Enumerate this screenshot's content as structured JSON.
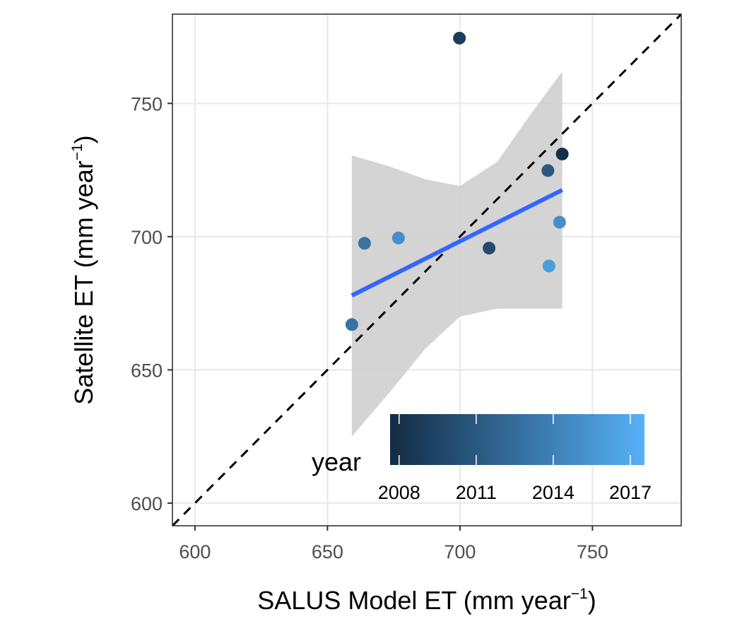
{
  "chart_data": {
    "type": "scatter",
    "xlabel": "SALUS Model ET (mm year",
    "xlabel_sup": "−1",
    "xlabel_end": ")",
    "ylabel": "Satellite ET (mm year",
    "ylabel_sup": "−1",
    "ylabel_end": ")",
    "xlim": [
      591.5,
      783.5
    ],
    "ylim": [
      591.5,
      783.5
    ],
    "x_ticks": [
      600,
      650,
      700,
      750
    ],
    "y_ticks": [
      600,
      650,
      700,
      750
    ],
    "x_tick_labels": [
      "600",
      "650",
      "700",
      "750"
    ],
    "y_tick_labels": [
      "600",
      "650",
      "700",
      "750"
    ],
    "grid": true,
    "identity_line": {
      "style": "dashed",
      "color": "#000000"
    },
    "points": [
      {
        "x": 659.2,
        "y": 667.0,
        "year": 2013
      },
      {
        "x": 664.0,
        "y": 697.5,
        "year": 2013
      },
      {
        "x": 676.8,
        "y": 699.5,
        "year": 2015
      },
      {
        "x": 699.8,
        "y": 774.5,
        "year": 2009
      },
      {
        "x": 711.0,
        "y": 695.7,
        "year": 2010
      },
      {
        "x": 733.2,
        "y": 724.8,
        "year": 2011
      },
      {
        "x": 733.6,
        "y": 689.0,
        "year": 2016
      },
      {
        "x": 737.6,
        "y": 705.4,
        "year": 2015
      },
      {
        "x": 738.6,
        "y": 731.0,
        "year": 2008
      }
    ],
    "regression": {
      "x": [
        659.2,
        738.6
      ],
      "y": [
        677.9,
        717.5
      ],
      "color": "#3366FF",
      "ci_upper": [
        [
          659.2,
          730.5
        ],
        [
          673,
          726.5
        ],
        [
          687,
          721.5
        ],
        [
          700,
          719
        ],
        [
          714,
          728
        ],
        [
          726,
          745
        ],
        [
          738.6,
          762
        ]
      ],
      "ci_lower": [
        [
          659.2,
          625
        ],
        [
          673,
          641
        ],
        [
          687,
          658
        ],
        [
          700,
          670
        ],
        [
          714,
          673
        ],
        [
          726,
          673
        ],
        [
          738.6,
          673
        ]
      ],
      "ci_fill": "#cccccc"
    },
    "legend": {
      "title": "year",
      "placement": "inside bottom-right",
      "range": [
        2007.65,
        2017.55
      ],
      "tick_values": [
        2008,
        2011,
        2014,
        2017
      ],
      "tick_labels": [
        "2008",
        "2011",
        "2014",
        "2017"
      ],
      "color_low": "#132B43",
      "color_high": "#56B1F7"
    }
  }
}
